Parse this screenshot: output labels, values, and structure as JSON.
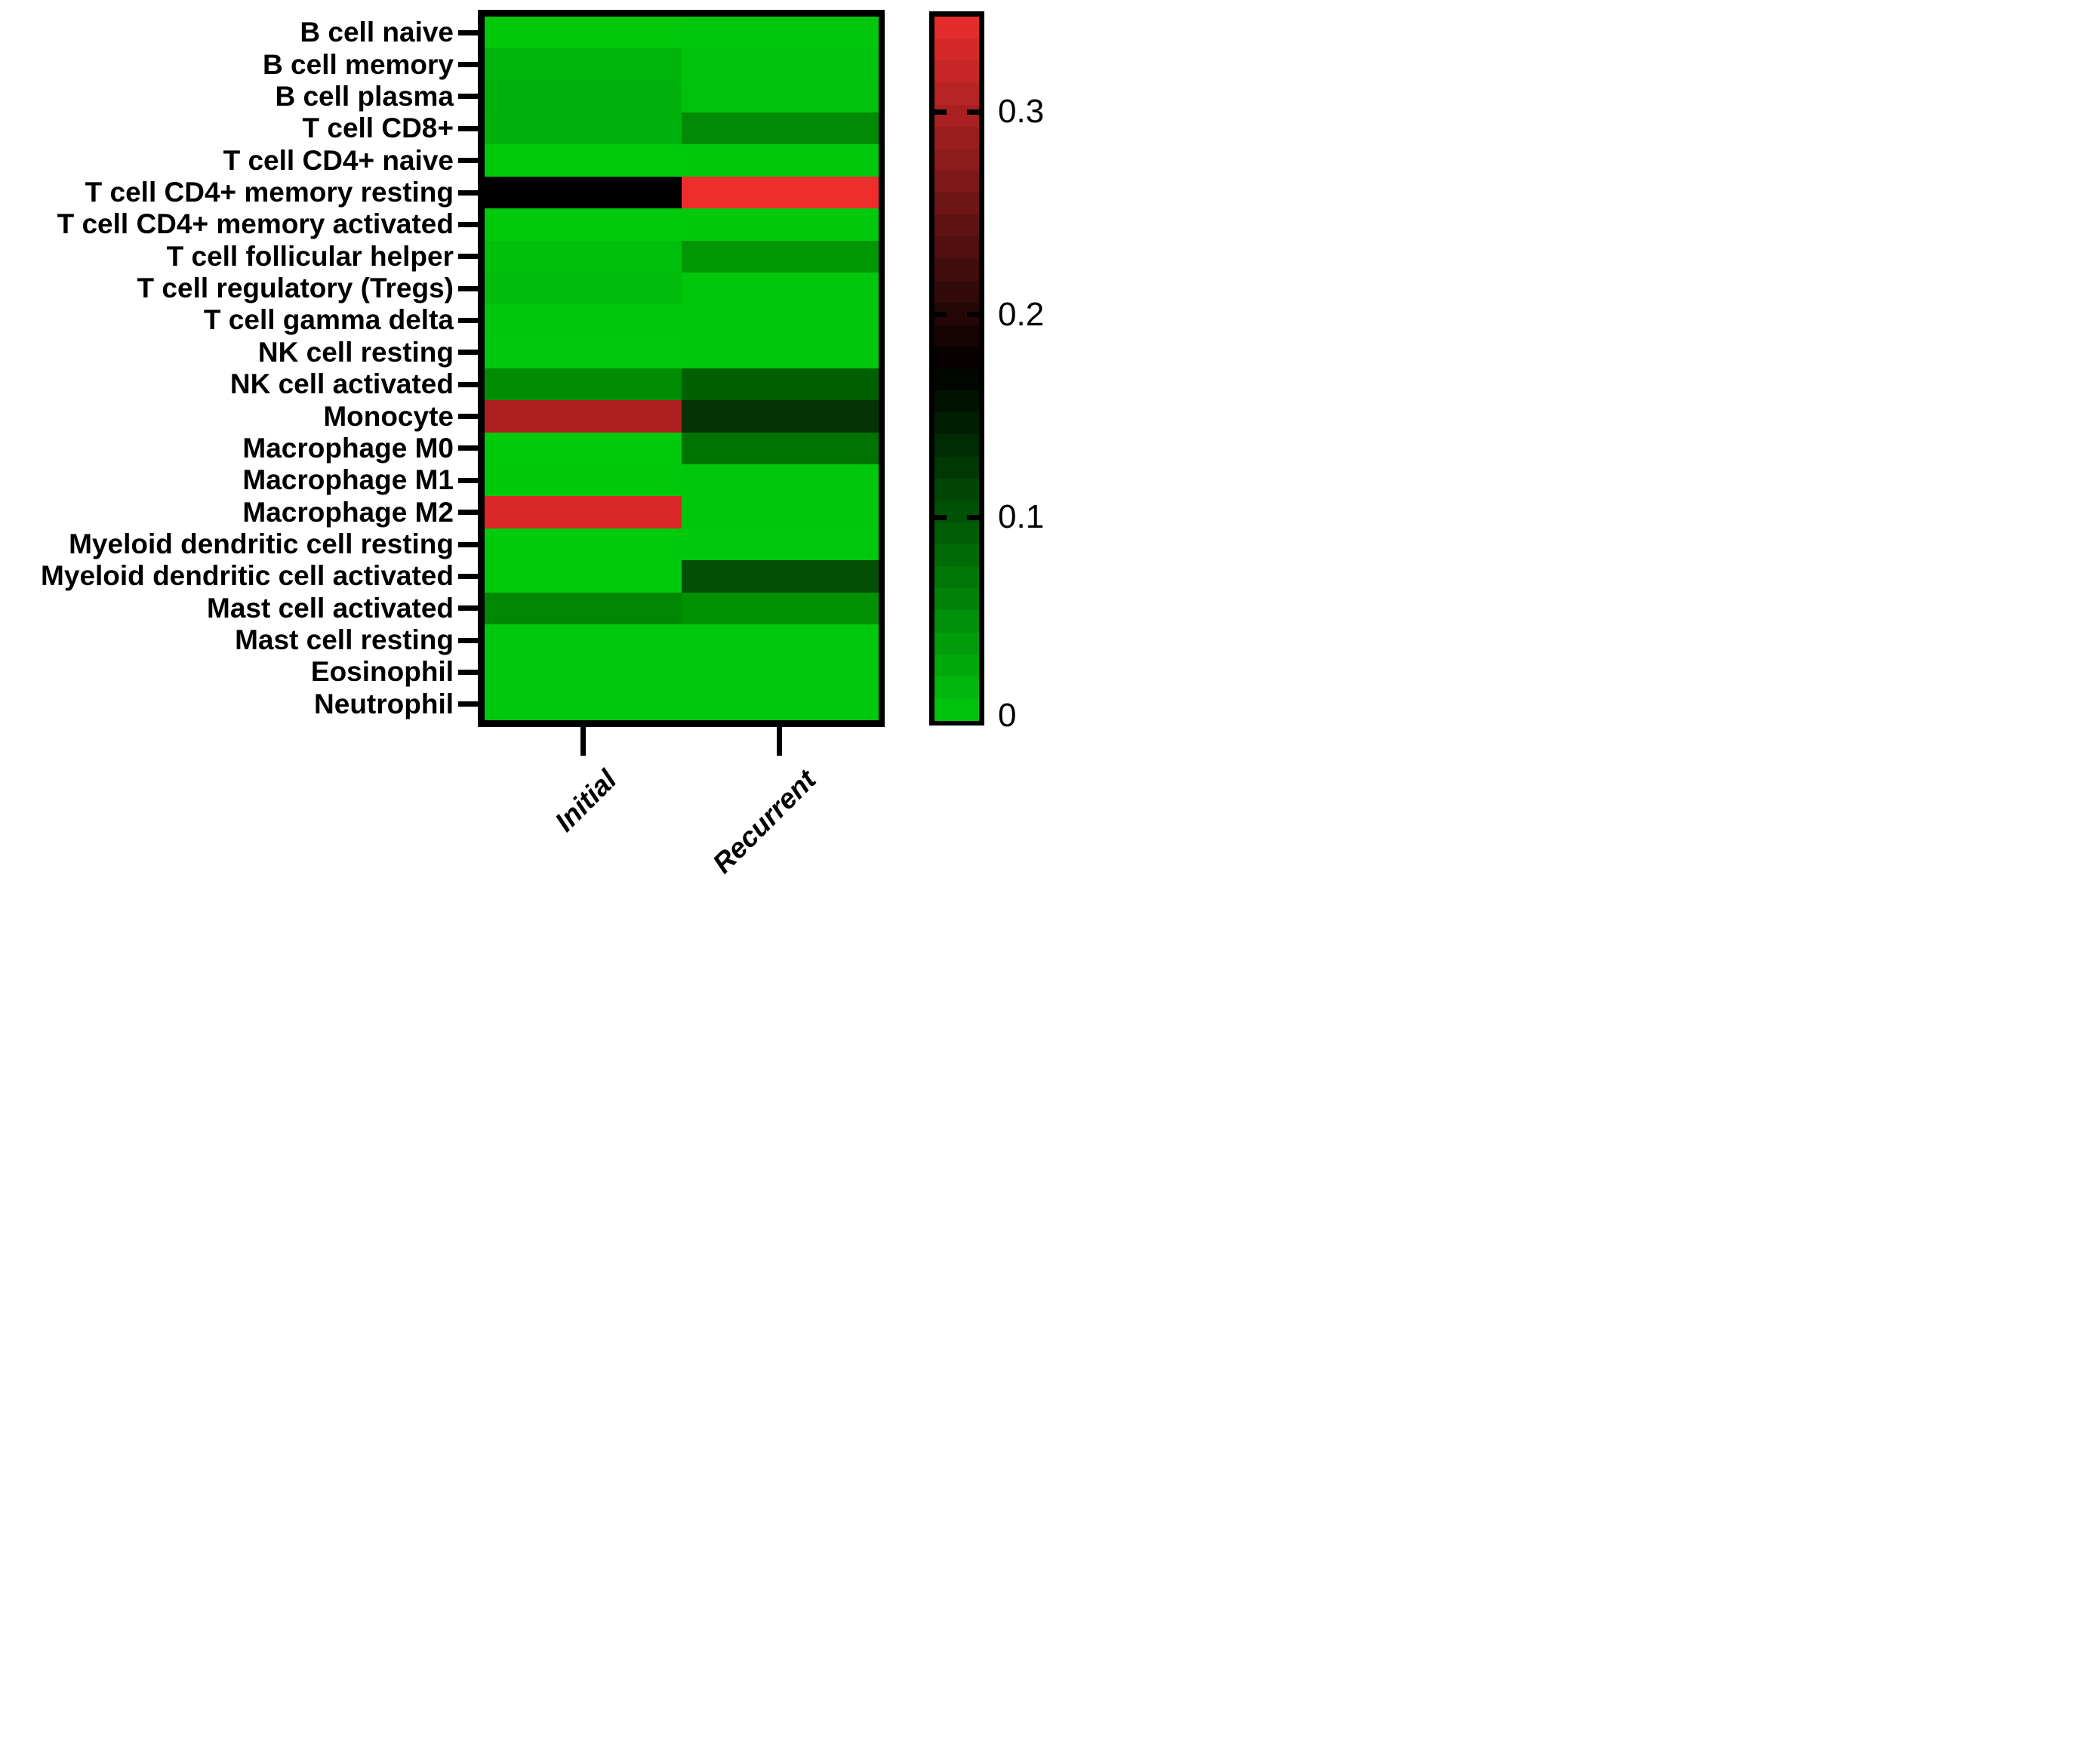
{
  "chart_data": {
    "type": "heatmap",
    "title": "",
    "xlabel": "",
    "ylabel": "",
    "grid": false,
    "legend_position": "right",
    "columns": [
      "Initial",
      "Recurrent"
    ],
    "rows": [
      {
        "label": "B cell naive",
        "values": [
          0.004,
          0.005
        ],
        "colors": [
          "#02C80C",
          "#01C70C"
        ]
      },
      {
        "label": "B cell memory",
        "values": [
          0.017,
          0.006
        ],
        "colors": [
          "#00B40B",
          "#00C40C"
        ]
      },
      {
        "label": "B cell plasma",
        "values": [
          0.021,
          0.008
        ],
        "colors": [
          "#00B00B",
          "#00C20C"
        ]
      },
      {
        "label": "T cell CD8+",
        "values": [
          0.019,
          0.053
        ],
        "colors": [
          "#00B20B",
          "#008B04"
        ]
      },
      {
        "label": "T cell CD4+ naive",
        "values": [
          0.002,
          0.003
        ],
        "colors": [
          "#00CA0C",
          "#00C90C"
        ]
      },
      {
        "label": "T cell CD4+ memory resting",
        "values": [
          0.174,
          0.345
        ],
        "colors": [
          "#000000",
          "#EE2D2D"
        ]
      },
      {
        "label": "T cell CD4+ memory activated",
        "values": [
          0.002,
          0.003
        ],
        "colors": [
          "#00CA0C",
          "#00C90C"
        ]
      },
      {
        "label": "T cell follicular helper",
        "values": [
          0.01,
          0.044
        ],
        "colors": [
          "#00C00B",
          "#009604"
        ]
      },
      {
        "label": "T cell regulatory (Tregs)",
        "values": [
          0.012,
          0.005
        ],
        "colors": [
          "#00BC0B",
          "#00C60C"
        ]
      },
      {
        "label": "T cell gamma delta",
        "values": [
          0.004,
          0.004
        ],
        "colors": [
          "#00C70C",
          "#00C70C"
        ]
      },
      {
        "label": "NK cell resting",
        "values": [
          0.003,
          0.004
        ],
        "colors": [
          "#00C80C",
          "#00C70C"
        ]
      },
      {
        "label": "NK cell activated",
        "values": [
          0.051,
          0.09
        ],
        "colors": [
          "#008D04",
          "#006002"
        ]
      },
      {
        "label": "Monocyte",
        "values": [
          0.305,
          0.13
        ],
        "colors": [
          "#AE2020",
          "#063306"
        ]
      },
      {
        "label": "Macrophage M0",
        "values": [
          0.002,
          0.073
        ],
        "colors": [
          "#00CA0C",
          "#007403"
        ]
      },
      {
        "label": "Macrophage M1",
        "values": [
          0.003,
          0.004
        ],
        "colors": [
          "#00C90C",
          "#00C70C"
        ]
      },
      {
        "label": "Macrophage M2",
        "values": [
          0.335,
          0.004
        ],
        "colors": [
          "#DA2727",
          "#00C70C"
        ]
      },
      {
        "label": "Myeloid dendritic cell resting",
        "values": [
          0.002,
          0.003
        ],
        "colors": [
          "#00CA0C",
          "#00C80C"
        ]
      },
      {
        "label": "Myeloid dendritic cell activated",
        "values": [
          0.002,
          0.106
        ],
        "colors": [
          "#00CA0C",
          "#054E05"
        ]
      },
      {
        "label": "Mast cell activated",
        "values": [
          0.056,
          0.047
        ],
        "colors": [
          "#008703",
          "#009203"
        ]
      },
      {
        "label": "Mast cell resting",
        "values": [
          0.003,
          0.003
        ],
        "colors": [
          "#00C80C",
          "#00C80C"
        ]
      },
      {
        "label": "Eosinophil",
        "values": [
          0.003,
          0.003
        ],
        "colors": [
          "#00C80C",
          "#00C80C"
        ]
      },
      {
        "label": "Neutrophil",
        "values": [
          0.003,
          0.003
        ],
        "colors": [
          "#00C80C",
          "#00C80C"
        ]
      }
    ],
    "colorbar": {
      "range": [
        0,
        0.347
      ],
      "ticks": [
        {
          "label": "0.3",
          "value": 0.3
        },
        {
          "label": "0.2",
          "value": 0.2
        },
        {
          "label": "0.1",
          "value": 0.1
        },
        {
          "label": "0",
          "value": 0
        }
      ],
      "colormap": {
        "low": "#00C80C",
        "mid": "#000000",
        "high": "#EB2D2D"
      },
      "steps": 32
    },
    "colors_meta": {
      "border": "#000000",
      "background": "#FFFFFF",
      "text": "#000000"
    }
  }
}
